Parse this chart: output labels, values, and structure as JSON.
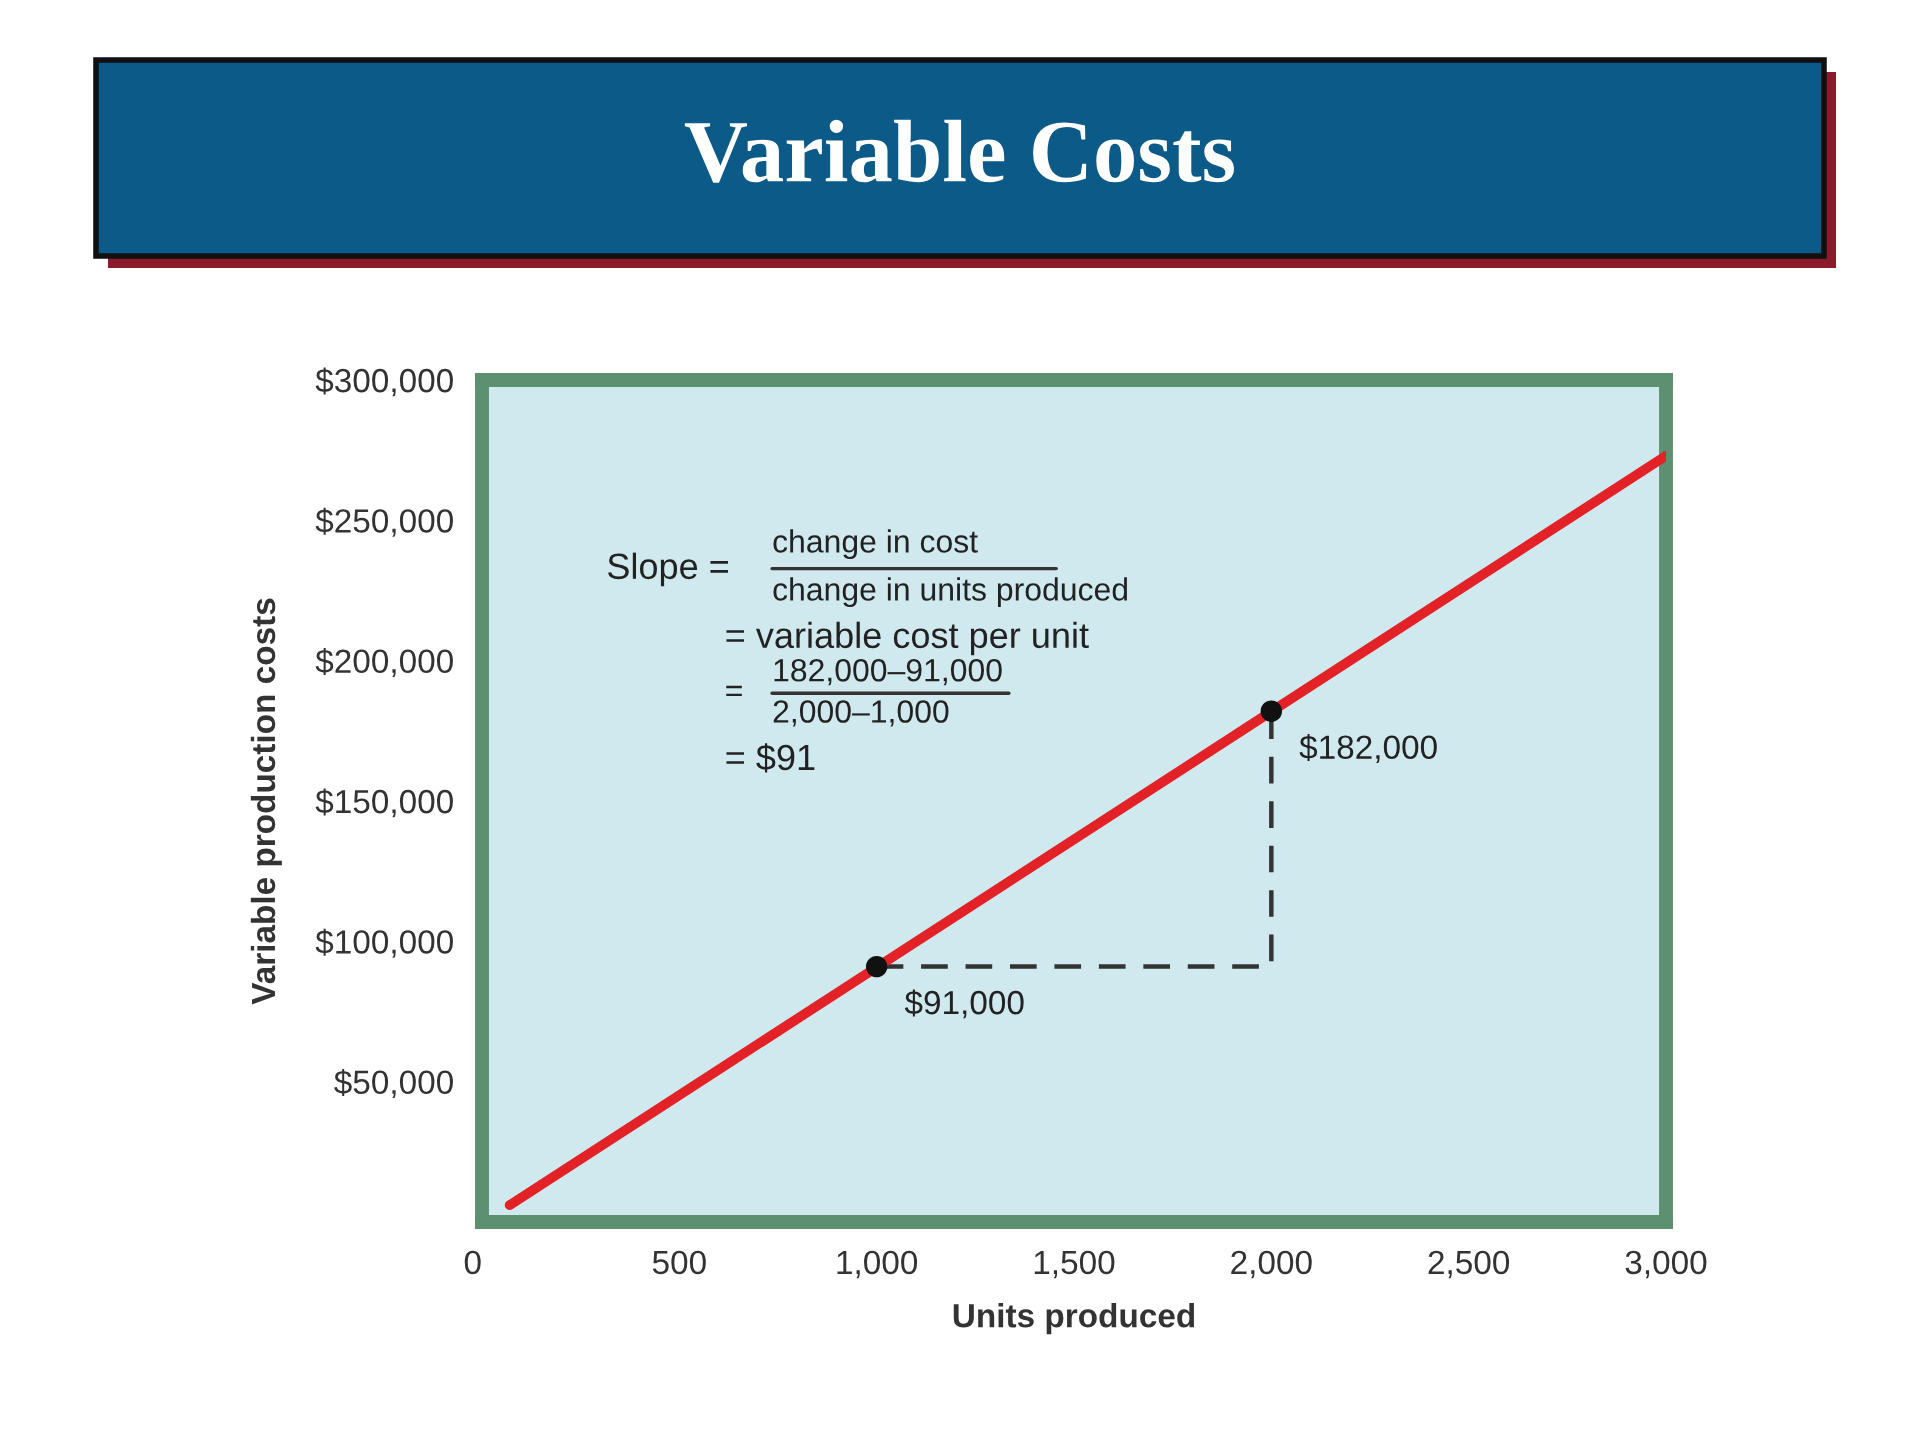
{
  "chart_data": {
    "type": "line",
    "title": "Variable Costs",
    "xlabel": "Units produced",
    "ylabel": "Variable production costs",
    "xlim": [
      0,
      3000
    ],
    "ylim": [
      0,
      300000
    ],
    "xticks": [
      {
        "value": 0,
        "label": "0"
      },
      {
        "value": 500,
        "label": "500"
      },
      {
        "value": 1000,
        "label": "1,000"
      },
      {
        "value": 1500,
        "label": "1,500"
      },
      {
        "value": 2000,
        "label": "2,000"
      },
      {
        "value": 2500,
        "label": "2,500"
      },
      {
        "value": 3000,
        "label": "3,000"
      }
    ],
    "yticks": [
      {
        "value": 50000,
        "label": "$50,000"
      },
      {
        "value": 100000,
        "label": "$100,000"
      },
      {
        "value": 150000,
        "label": "$150,000"
      },
      {
        "value": 200000,
        "label": "$200,000"
      },
      {
        "value": 250000,
        "label": "$250,000"
      },
      {
        "value": 300000,
        "label": "$300,000"
      }
    ],
    "series": [
      {
        "type": "line",
        "color": "#333333",
        "line_style": "dashed",
        "x": [
          1000,
          2000,
          2000
        ],
        "values": [
          91000,
          91000,
          182000
        ]
      },
      {
        "color": "#e32228",
        "x": [
          70,
          3000
        ],
        "values": [
          6000,
          273000
        ]
      },
      {
        "type": "scatter",
        "color": "#111111",
        "marker": "circle",
        "x": [
          1000,
          2000
        ],
        "values": [
          91000,
          182000
        ]
      }
    ],
    "annotations": [
      "Slope =",
      "change in cost",
      "change in units produced",
      "= variable cost per unit",
      "=",
      "182,000–91,000",
      "2,000–1,000",
      "= $91",
      {
        "text": "$182,000",
        "x": 2000,
        "y": 182000
      },
      {
        "text": "$91,000",
        "x": 1000,
        "y": 91000
      }
    ]
  }
}
